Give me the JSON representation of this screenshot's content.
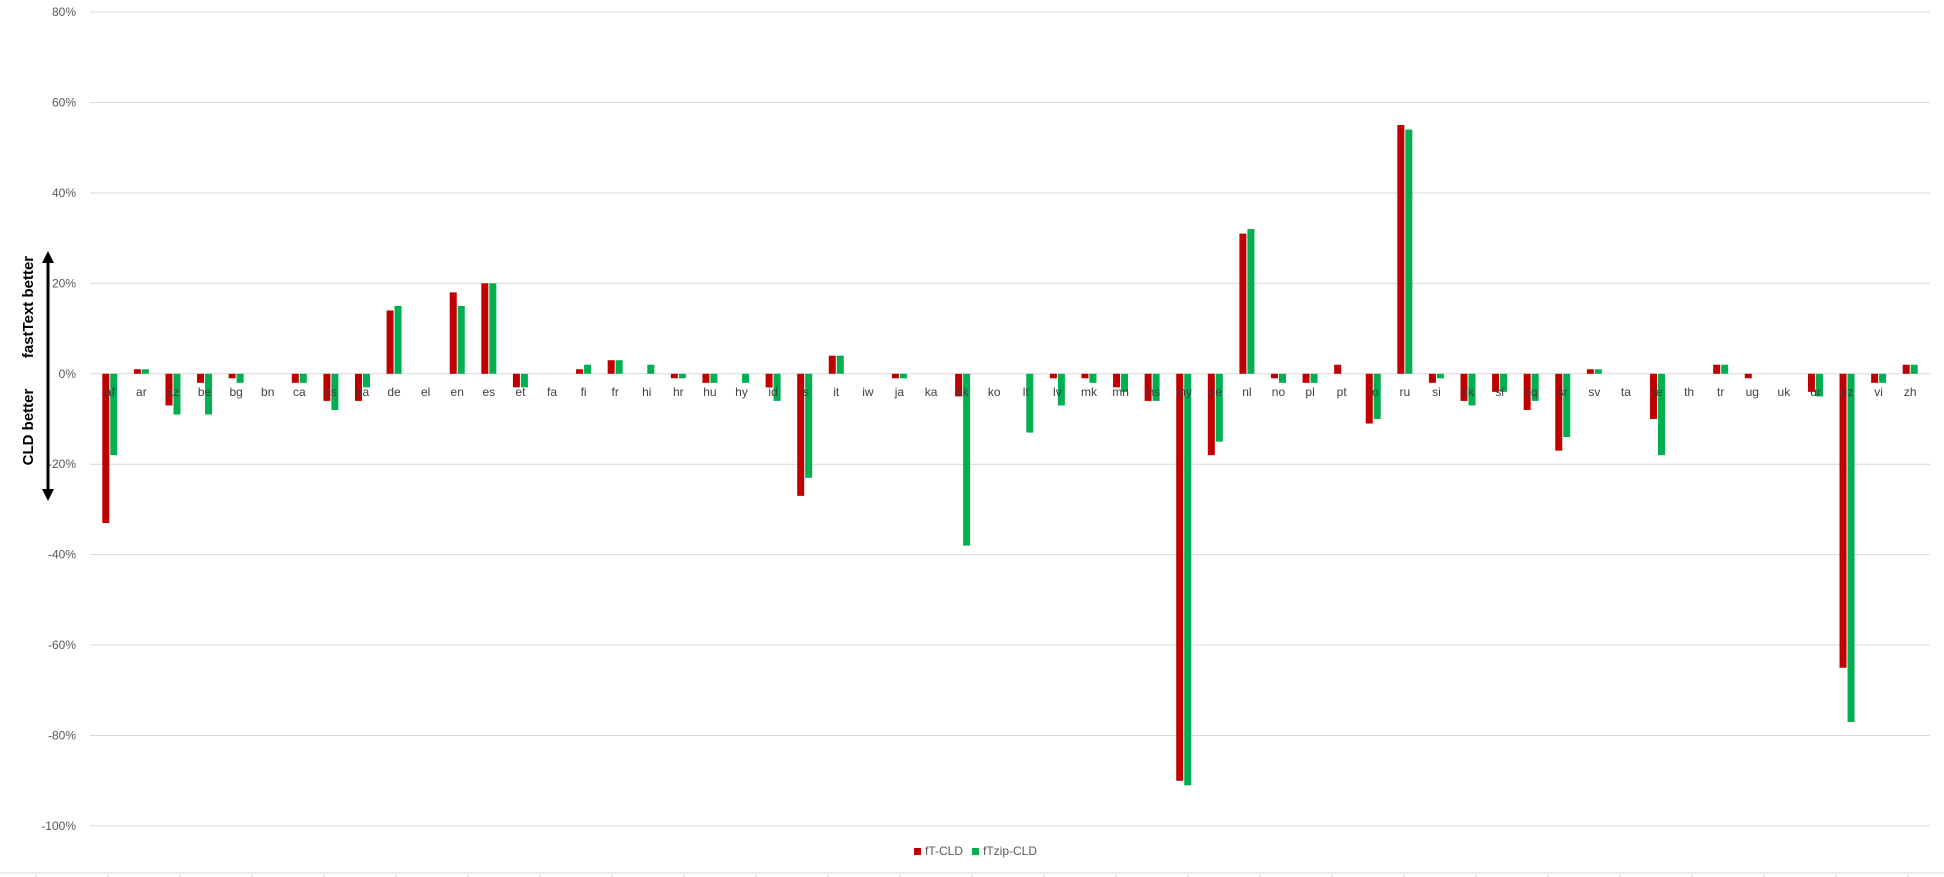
{
  "chart_data": {
    "type": "bar",
    "categories": [
      "af",
      "ar",
      "az",
      "be",
      "bg",
      "bn",
      "ca",
      "cs",
      "da",
      "de",
      "el",
      "en",
      "es",
      "et",
      "fa",
      "fi",
      "fr",
      "hi",
      "hr",
      "hu",
      "hy",
      "id",
      "is",
      "it",
      "iw",
      "ja",
      "ka",
      "kk",
      "ko",
      "lt",
      "lv",
      "mk",
      "mn",
      "ms",
      "my",
      "ne",
      "nl",
      "no",
      "pl",
      "pt",
      "ro",
      "ru",
      "si",
      "sk",
      "sl",
      "sq",
      "sr",
      "sv",
      "ta",
      "te",
      "th",
      "tr",
      "ug",
      "uk",
      "ur",
      "uz",
      "vi",
      "zh"
    ],
    "series": [
      {
        "name": "fT-CLD",
        "color": "#c00000",
        "values": [
          -33,
          1,
          -7,
          -2,
          -1,
          0,
          -2,
          -6,
          -6,
          14,
          0,
          18,
          20,
          -3,
          0,
          1,
          3,
          0,
          -1,
          -2,
          0,
          -3,
          -27,
          4,
          0,
          -1,
          0,
          -5,
          0,
          0,
          -1,
          -1,
          -3,
          -6,
          -90,
          -18,
          31,
          -1,
          -2,
          2,
          -11,
          55,
          -2,
          -6,
          -4,
          -8,
          -17,
          1,
          0,
          -10,
          0,
          2,
          -1,
          0,
          -4,
          -65,
          -2,
          2
        ]
      },
      {
        "name": "fTzip-CLD",
        "color": "#00b050",
        "values": [
          -18,
          1,
          -9,
          -9,
          -2,
          0,
          -2,
          -8,
          -3,
          15,
          0,
          15,
          20,
          -3,
          0,
          2,
          3,
          2,
          -1,
          -2,
          -2,
          -6,
          -23,
          4,
          0,
          -1,
          0,
          -38,
          0,
          -13,
          -7,
          -2,
          -4,
          -6,
          -91,
          -15,
          32,
          -2,
          -2,
          0,
          -10,
          54,
          -1,
          -7,
          -4,
          -6,
          -14,
          1,
          0,
          -18,
          0,
          2,
          0,
          0,
          -5,
          -77,
          -2,
          2
        ]
      }
    ],
    "ylim": [
      -100,
      80
    ],
    "yticks": [
      -100,
      -80,
      -60,
      -40,
      -20,
      0,
      20,
      40,
      60,
      80
    ],
    "ytick_format": "percent",
    "side_labels": {
      "top": "fastText better",
      "bottom": "CLD better"
    },
    "grid": true,
    "legend_position": "bottom-center"
  }
}
